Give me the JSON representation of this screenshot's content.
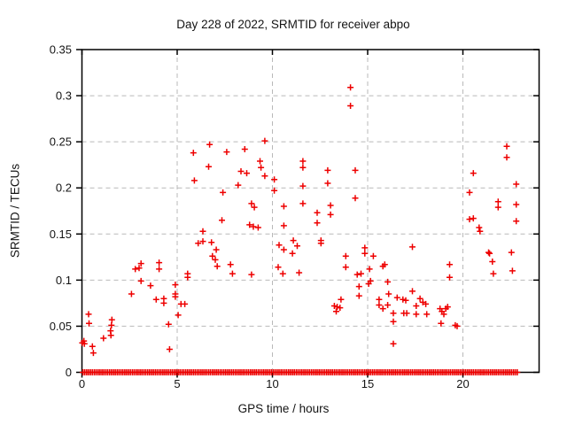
{
  "chart_data": {
    "type": "scatter",
    "title": "Day 228 of 2022, SRMTID for receiver abpo",
    "xlabel": "GPS time / hours",
    "ylabel": "SRMTID / TECUs",
    "xlim": [
      0,
      24
    ],
    "ylim": [
      0,
      0.35
    ],
    "xticks": [
      0,
      5,
      10,
      15,
      20
    ],
    "xtick_labels": [
      "0",
      "5",
      "10",
      "15",
      "20"
    ],
    "yticks": [
      0,
      0.05,
      0.1,
      0.15,
      0.2,
      0.25,
      0.3,
      0.35
    ],
    "ytick_labels": [
      "0",
      "0.05",
      "0.1",
      "0.15",
      "0.2",
      "0.25",
      "0.3",
      "0.35"
    ],
    "grid": true,
    "legend": "none",
    "marker": "plus",
    "colors": {
      "marker": "#ee0000",
      "axis": "#000000",
      "grid": "#b9b9b9",
      "text": "#141414",
      "background": "#ffffff"
    },
    "series": [
      {
        "name": "SRMTID",
        "points": [
          [
            0.02,
            0.032
          ],
          [
            0.1,
            0.034
          ],
          [
            0.13,
            0.031
          ],
          [
            0.35,
            0.063
          ],
          [
            0.37,
            0.053
          ],
          [
            0.55,
            0.028
          ],
          [
            0.6,
            0.021
          ],
          [
            1.13,
            0.037
          ],
          [
            1.5,
            0.045
          ],
          [
            1.52,
            0.04
          ],
          [
            1.55,
            0.051
          ],
          [
            1.57,
            0.057
          ],
          [
            2.6,
            0.085
          ],
          [
            2.8,
            0.112
          ],
          [
            3.0,
            0.113
          ],
          [
            3.1,
            0.118
          ],
          [
            3.1,
            0.099
          ],
          [
            3.6,
            0.094
          ],
          [
            3.9,
            0.079
          ],
          [
            4.05,
            0.119
          ],
          [
            4.05,
            0.112
          ],
          [
            4.3,
            0.08
          ],
          [
            4.3,
            0.075
          ],
          [
            4.55,
            0.052
          ],
          [
            4.6,
            0.025
          ],
          [
            4.9,
            0.095
          ],
          [
            4.9,
            0.085
          ],
          [
            4.9,
            0.082
          ],
          [
            5.05,
            0.062
          ],
          [
            5.2,
            0.074
          ],
          [
            5.4,
            0.074
          ],
          [
            5.55,
            0.107
          ],
          [
            5.55,
            0.103
          ],
          [
            5.85,
            0.238
          ],
          [
            5.9,
            0.208
          ],
          [
            6.1,
            0.14
          ],
          [
            6.35,
            0.142
          ],
          [
            6.35,
            0.153
          ],
          [
            6.65,
            0.223
          ],
          [
            6.7,
            0.247
          ],
          [
            6.8,
            0.141
          ],
          [
            6.85,
            0.126
          ],
          [
            7.0,
            0.122
          ],
          [
            7.05,
            0.133
          ],
          [
            7.1,
            0.115
          ],
          [
            7.35,
            0.165
          ],
          [
            7.4,
            0.195
          ],
          [
            7.6,
            0.239
          ],
          [
            7.8,
            0.117
          ],
          [
            7.9,
            0.107
          ],
          [
            8.2,
            0.203
          ],
          [
            8.35,
            0.218
          ],
          [
            8.55,
            0.242
          ],
          [
            8.65,
            0.216
          ],
          [
            8.8,
            0.16
          ],
          [
            8.9,
            0.183
          ],
          [
            8.9,
            0.106
          ],
          [
            9.0,
            0.158
          ],
          [
            9.05,
            0.179
          ],
          [
            9.25,
            0.157
          ],
          [
            9.35,
            0.229
          ],
          [
            9.4,
            0.222
          ],
          [
            9.6,
            0.251
          ],
          [
            9.6,
            0.213
          ],
          [
            10.1,
            0.209
          ],
          [
            10.1,
            0.197
          ],
          [
            10.3,
            0.114
          ],
          [
            10.35,
            0.138
          ],
          [
            10.55,
            0.107
          ],
          [
            10.6,
            0.18
          ],
          [
            10.6,
            0.159
          ],
          [
            10.6,
            0.133
          ],
          [
            11.05,
            0.129
          ],
          [
            11.1,
            0.143
          ],
          [
            11.3,
            0.137
          ],
          [
            11.4,
            0.108
          ],
          [
            11.6,
            0.229
          ],
          [
            11.6,
            0.222
          ],
          [
            11.6,
            0.202
          ],
          [
            11.6,
            0.183
          ],
          [
            12.35,
            0.173
          ],
          [
            12.35,
            0.162
          ],
          [
            12.55,
            0.143
          ],
          [
            12.55,
            0.14
          ],
          [
            12.9,
            0.219
          ],
          [
            12.9,
            0.205
          ],
          [
            13.05,
            0.181
          ],
          [
            13.05,
            0.171
          ],
          [
            13.25,
            0.072
          ],
          [
            13.35,
            0.066
          ],
          [
            13.4,
            0.071
          ],
          [
            13.55,
            0.07
          ],
          [
            13.6,
            0.079
          ],
          [
            13.85,
            0.126
          ],
          [
            13.85,
            0.114
          ],
          [
            14.1,
            0.309
          ],
          [
            14.1,
            0.289
          ],
          [
            14.35,
            0.219
          ],
          [
            14.35,
            0.189
          ],
          [
            14.45,
            0.106
          ],
          [
            14.55,
            0.093
          ],
          [
            14.55,
            0.083
          ],
          [
            14.65,
            0.107
          ],
          [
            14.85,
            0.135
          ],
          [
            14.85,
            0.129
          ],
          [
            15.05,
            0.096
          ],
          [
            15.1,
            0.112
          ],
          [
            15.15,
            0.099
          ],
          [
            15.3,
            0.126
          ],
          [
            15.6,
            0.079
          ],
          [
            15.6,
            0.073
          ],
          [
            15.8,
            0.115
          ],
          [
            15.8,
            0.069
          ],
          [
            15.9,
            0.117
          ],
          [
            16.05,
            0.098
          ],
          [
            16.05,
            0.073
          ],
          [
            16.1,
            0.085
          ],
          [
            16.35,
            0.064
          ],
          [
            16.35,
            0.055
          ],
          [
            16.35,
            0.031
          ],
          [
            16.55,
            0.081
          ],
          [
            16.85,
            0.079
          ],
          [
            16.9,
            0.064
          ],
          [
            17.0,
            0.078
          ],
          [
            17.05,
            0.064
          ],
          [
            17.35,
            0.136
          ],
          [
            17.35,
            0.088
          ],
          [
            17.55,
            0.072
          ],
          [
            17.55,
            0.063
          ],
          [
            17.75,
            0.08
          ],
          [
            17.9,
            0.076
          ],
          [
            18.05,
            0.074
          ],
          [
            18.1,
            0.063
          ],
          [
            18.8,
            0.069
          ],
          [
            18.85,
            0.053
          ],
          [
            18.9,
            0.066
          ],
          [
            19.0,
            0.063
          ],
          [
            19.1,
            0.069
          ],
          [
            19.2,
            0.071
          ],
          [
            19.3,
            0.117
          ],
          [
            19.3,
            0.103
          ],
          [
            19.6,
            0.051
          ],
          [
            19.7,
            0.05
          ],
          [
            20.35,
            0.195
          ],
          [
            20.35,
            0.166
          ],
          [
            20.55,
            0.216
          ],
          [
            20.55,
            0.167
          ],
          [
            20.85,
            0.157
          ],
          [
            20.9,
            0.153
          ],
          [
            21.35,
            0.13
          ],
          [
            21.4,
            0.129
          ],
          [
            21.55,
            0.12
          ],
          [
            21.6,
            0.107
          ],
          [
            21.85,
            0.185
          ],
          [
            21.85,
            0.179
          ],
          [
            22.3,
            0.245
          ],
          [
            22.3,
            0.233
          ],
          [
            22.55,
            0.13
          ],
          [
            22.6,
            0.11
          ],
          [
            22.8,
            0.204
          ],
          [
            22.8,
            0.182
          ],
          [
            22.8,
            0.164
          ]
        ]
      }
    ],
    "zero_band": {
      "value": 0,
      "x_start": 0.05,
      "x_end": 22.9,
      "step": 0.1
    }
  }
}
